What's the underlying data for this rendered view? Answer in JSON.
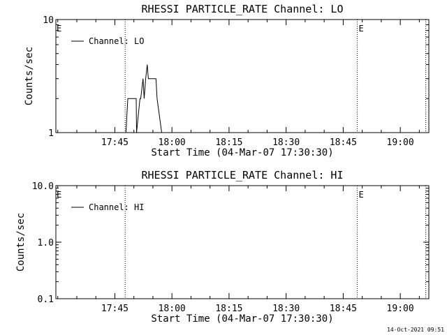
{
  "footer": {
    "timestamp": "14-Oct-2021 09:51"
  },
  "chart_data": [
    {
      "type": "line",
      "title": "RHESSI PARTICLE_RATE Channel: LO",
      "xlabel": "Start Time (04-Mar-07 17:30:30)",
      "ylabel": "Counts/sec",
      "yscale": "log",
      "ylim": [
        1,
        10
      ],
      "yticks": [
        {
          "value": 1,
          "label": "1"
        },
        {
          "value": 10,
          "label": "10"
        }
      ],
      "xlim_minutes": [
        0,
        98
      ],
      "xticks": [
        {
          "minutes": 15.5,
          "label": "17:45"
        },
        {
          "minutes": 30.5,
          "label": "18:00"
        },
        {
          "minutes": 45.5,
          "label": "18:15"
        },
        {
          "minutes": 60.5,
          "label": "18:30"
        },
        {
          "minutes": 75.5,
          "label": "18:45"
        },
        {
          "minutes": 90.5,
          "label": "19:00"
        }
      ],
      "event_lines": [
        {
          "minutes": 18.2,
          "label": ""
        },
        {
          "minutes": 79.2,
          "label": "E"
        },
        {
          "minutes": 97.2,
          "label": ""
        }
      ],
      "left_edge_label": "E",
      "legend": {
        "position": "top-left",
        "entries": [
          "Channel: LO"
        ]
      },
      "series": [
        {
          "name": "Channel: LO",
          "x_minutes": [
            18.4,
            18.9,
            19.0,
            21.1,
            21.2,
            22.1,
            22.3,
            22.9,
            23.2,
            23.6,
            24.0,
            24.3,
            24.7,
            24.9,
            26.3,
            26.6,
            27.8
          ],
          "y": [
            1,
            2,
            2,
            2,
            1,
            2,
            2,
            3,
            2,
            3,
            4,
            3,
            3,
            3,
            3,
            2,
            1
          ]
        }
      ]
    },
    {
      "type": "line",
      "title": "RHESSI PARTICLE_RATE Channel: HI",
      "xlabel": "Start Time (04-Mar-07 17:30:30)",
      "ylabel": "Counts/sec",
      "yscale": "log",
      "ylim": [
        0.1,
        10
      ],
      "yticks": [
        {
          "value": 0.1,
          "label": "0.1"
        },
        {
          "value": 1,
          "label": "1.0"
        },
        {
          "value": 10,
          "label": "10.0"
        }
      ],
      "xlim_minutes": [
        0,
        98
      ],
      "xticks": [
        {
          "minutes": 15.5,
          "label": "17:45"
        },
        {
          "minutes": 30.5,
          "label": "18:00"
        },
        {
          "minutes": 45.5,
          "label": "18:15"
        },
        {
          "minutes": 60.5,
          "label": "18:30"
        },
        {
          "minutes": 75.5,
          "label": "18:45"
        },
        {
          "minutes": 90.5,
          "label": "19:00"
        }
      ],
      "event_lines": [
        {
          "minutes": 18.2,
          "label": ""
        },
        {
          "minutes": 79.2,
          "label": "E"
        },
        {
          "minutes": 97.2,
          "label": ""
        }
      ],
      "left_edge_label": "E",
      "legend": {
        "position": "top-left",
        "entries": [
          "Channel: HI"
        ]
      },
      "series": [
        {
          "name": "Channel: HI",
          "x_minutes": [],
          "y": []
        }
      ]
    }
  ]
}
